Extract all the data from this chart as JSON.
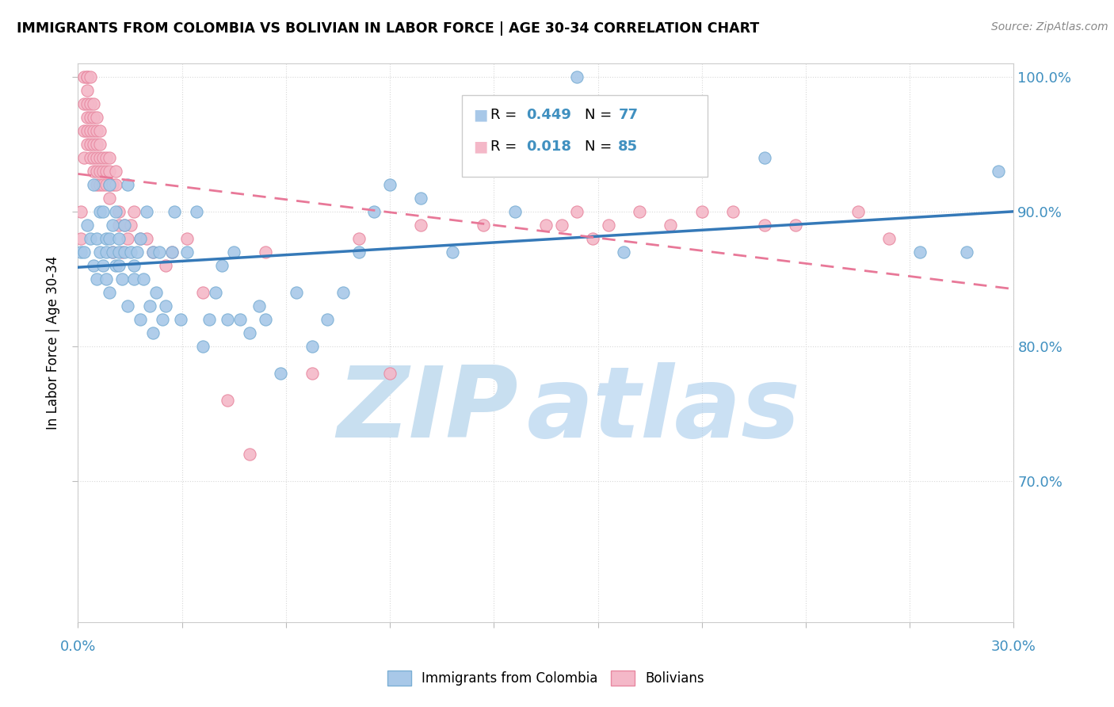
{
  "title": "IMMIGRANTS FROM COLOMBIA VS BOLIVIAN IN LABOR FORCE | AGE 30-34 CORRELATION CHART",
  "source": "Source: ZipAtlas.com",
  "ylabel": "In Labor Force | Age 30-34",
  "legend_label1": "Immigrants from Colombia",
  "legend_label2": "Bolivians",
  "R1": 0.449,
  "N1": 77,
  "R2": 0.018,
  "N2": 85,
  "color_blue": "#a8c8e8",
  "color_blue_edge": "#7bafd4",
  "color_pink": "#f4b8c8",
  "color_pink_edge": "#e888a0",
  "color_blue_line": "#3579b8",
  "color_pink_line": "#e87898",
  "color_axis_label": "#4090c0",
  "color_grid": "#d8d8d8",
  "watermark_zip": "#c8dff0",
  "watermark_atlas": "#a8ccec",
  "xlim": [
    0.0,
    0.3
  ],
  "ylim": [
    0.595,
    1.01
  ],
  "yticks": [
    0.7,
    0.8,
    0.9,
    1.0
  ],
  "ytick_labels": [
    "70.0%",
    "80.0%",
    "90.0%",
    "100.0%"
  ],
  "colombia_x": [
    0.001,
    0.002,
    0.003,
    0.004,
    0.005,
    0.005,
    0.006,
    0.006,
    0.007,
    0.007,
    0.008,
    0.008,
    0.009,
    0.009,
    0.009,
    0.01,
    0.01,
    0.01,
    0.011,
    0.011,
    0.012,
    0.012,
    0.013,
    0.013,
    0.013,
    0.014,
    0.015,
    0.015,
    0.016,
    0.016,
    0.017,
    0.018,
    0.018,
    0.019,
    0.02,
    0.02,
    0.021,
    0.022,
    0.023,
    0.024,
    0.024,
    0.025,
    0.026,
    0.027,
    0.028,
    0.03,
    0.031,
    0.033,
    0.035,
    0.038,
    0.04,
    0.042,
    0.044,
    0.046,
    0.048,
    0.05,
    0.052,
    0.055,
    0.058,
    0.06,
    0.065,
    0.07,
    0.075,
    0.08,
    0.085,
    0.09,
    0.095,
    0.1,
    0.11,
    0.12,
    0.14,
    0.16,
    0.175,
    0.22,
    0.27,
    0.285,
    0.295
  ],
  "colombia_y": [
    0.87,
    0.87,
    0.89,
    0.88,
    0.92,
    0.86,
    0.88,
    0.85,
    0.9,
    0.87,
    0.86,
    0.9,
    0.88,
    0.85,
    0.87,
    0.92,
    0.88,
    0.84,
    0.89,
    0.87,
    0.86,
    0.9,
    0.87,
    0.86,
    0.88,
    0.85,
    0.87,
    0.89,
    0.92,
    0.83,
    0.87,
    0.85,
    0.86,
    0.87,
    0.88,
    0.82,
    0.85,
    0.9,
    0.83,
    0.87,
    0.81,
    0.84,
    0.87,
    0.82,
    0.83,
    0.87,
    0.9,
    0.82,
    0.87,
    0.9,
    0.8,
    0.82,
    0.84,
    0.86,
    0.82,
    0.87,
    0.82,
    0.81,
    0.83,
    0.82,
    0.78,
    0.84,
    0.8,
    0.82,
    0.84,
    0.87,
    0.9,
    0.92,
    0.91,
    0.87,
    0.9,
    1.0,
    0.87,
    0.94,
    0.87,
    0.87,
    0.93
  ],
  "bolivian_x": [
    0.001,
    0.001,
    0.002,
    0.002,
    0.002,
    0.002,
    0.003,
    0.003,
    0.003,
    0.003,
    0.003,
    0.003,
    0.003,
    0.004,
    0.004,
    0.004,
    0.004,
    0.004,
    0.004,
    0.005,
    0.005,
    0.005,
    0.005,
    0.005,
    0.005,
    0.006,
    0.006,
    0.006,
    0.006,
    0.006,
    0.006,
    0.007,
    0.007,
    0.007,
    0.007,
    0.007,
    0.008,
    0.008,
    0.008,
    0.009,
    0.009,
    0.009,
    0.01,
    0.01,
    0.01,
    0.01,
    0.011,
    0.011,
    0.012,
    0.012,
    0.013,
    0.013,
    0.014,
    0.015,
    0.016,
    0.017,
    0.018,
    0.02,
    0.022,
    0.024,
    0.028,
    0.03,
    0.035,
    0.04,
    0.048,
    0.055,
    0.06,
    0.075,
    0.09,
    0.1,
    0.11,
    0.13,
    0.15,
    0.155,
    0.16,
    0.165,
    0.17,
    0.18,
    0.19,
    0.2,
    0.21,
    0.22,
    0.23,
    0.25,
    0.26
  ],
  "bolivian_y": [
    0.88,
    0.9,
    0.94,
    0.96,
    0.98,
    1.0,
    0.95,
    0.96,
    0.97,
    0.98,
    0.99,
    1.0,
    1.0,
    0.94,
    0.95,
    0.96,
    0.97,
    0.98,
    1.0,
    0.93,
    0.94,
    0.95,
    0.96,
    0.97,
    0.98,
    0.92,
    0.93,
    0.94,
    0.95,
    0.96,
    0.97,
    0.92,
    0.93,
    0.94,
    0.95,
    0.96,
    0.92,
    0.93,
    0.94,
    0.92,
    0.93,
    0.94,
    0.91,
    0.92,
    0.93,
    0.94,
    0.87,
    0.92,
    0.92,
    0.93,
    0.89,
    0.9,
    0.87,
    0.89,
    0.88,
    0.89,
    0.9,
    0.88,
    0.88,
    0.87,
    0.86,
    0.87,
    0.88,
    0.84,
    0.76,
    0.72,
    0.87,
    0.78,
    0.88,
    0.78,
    0.89,
    0.89,
    0.89,
    0.89,
    0.9,
    0.88,
    0.89,
    0.9,
    0.89,
    0.9,
    0.9,
    0.89,
    0.89,
    0.9,
    0.88
  ]
}
